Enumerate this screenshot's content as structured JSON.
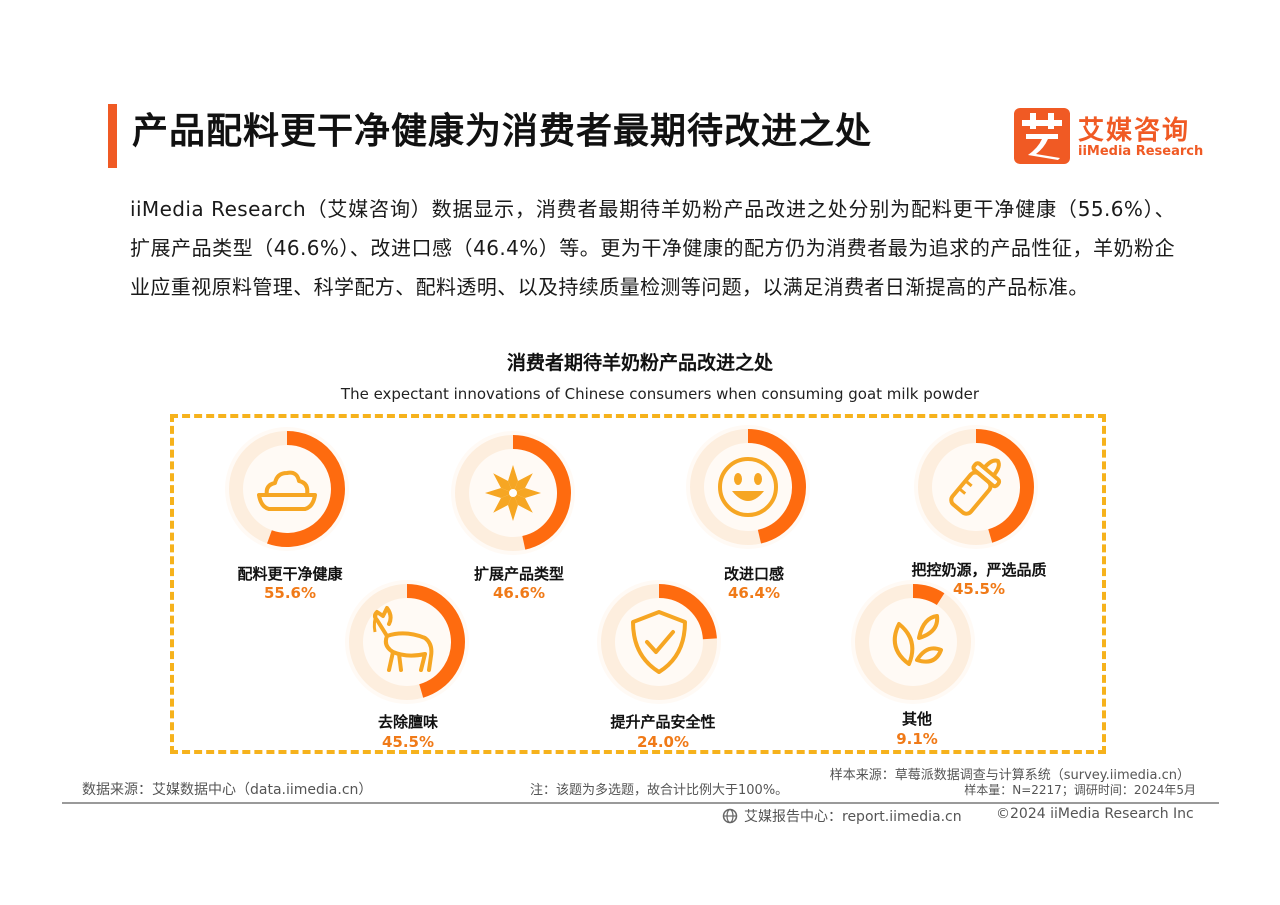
{
  "header": {
    "title": "产品配料更干净健康为消费者最期待改进之处",
    "logo_cn": "艾媒咨询",
    "logo_en": "iiMedia Research"
  },
  "intro": "iiMedia Research（艾媒咨询）数据显示，消费者最期待羊奶粉产品改进之处分别为配料更干净健康（55.6%）、扩展产品类型（46.6%）、改进口感（46.4%）等。更为干净健康的配方仍为消费者最为追求的产品性征，羊奶粉企业应重视原料管理、科学配方、配料透明、以及持续质量检测等问题，以满足消费者日渐提高的产品标准。",
  "colors": {
    "accent": "#f05a24",
    "ring": "#fe6b0f",
    "ring_track": "#fdeede",
    "icon": "#f6a623",
    "dash": "#f6b21c",
    "value": "#f07a18"
  },
  "chart_data": {
    "type": "radial-progress",
    "title": "消费者期待羊奶粉产品改进之处",
    "subtitle": "The expectant innovations of Chinese consumers when consuming goat milk powder",
    "unit": "%",
    "categories": [
      "配料更干净健康",
      "扩展产品类型",
      "改进口感",
      "把控奶源，严选品质",
      "去除膻味",
      "提升产品安全性",
      "其他"
    ],
    "values": [
      55.6,
      46.6,
      46.4,
      45.5,
      45.5,
      24.0,
      9.1
    ],
    "value_labels": [
      "55.6%",
      "46.6%",
      "46.4%",
      "45.5%",
      "45.5%",
      "24.0%",
      "9.1%"
    ],
    "icons": [
      "milk-powder-icon",
      "star-flower-icon",
      "smiley-face-icon",
      "baby-bottle-icon",
      "goat-icon",
      "shield-check-icon",
      "leaves-icon"
    ]
  },
  "footer": {
    "source": "数据来源：艾媒数据中心（data.iimedia.cn）",
    "note": "注：该题为多选题，故合计比例大于100%。",
    "sample_source": "样本来源：草莓派数据调查与计算系统（survey.iimedia.cn）",
    "sample_size": "样本量：N=2217；调研时间：2024年5月",
    "report_center": "艾媒报告中心：report.iimedia.cn",
    "copyright": "©2024  iiMedia Research  Inc"
  }
}
